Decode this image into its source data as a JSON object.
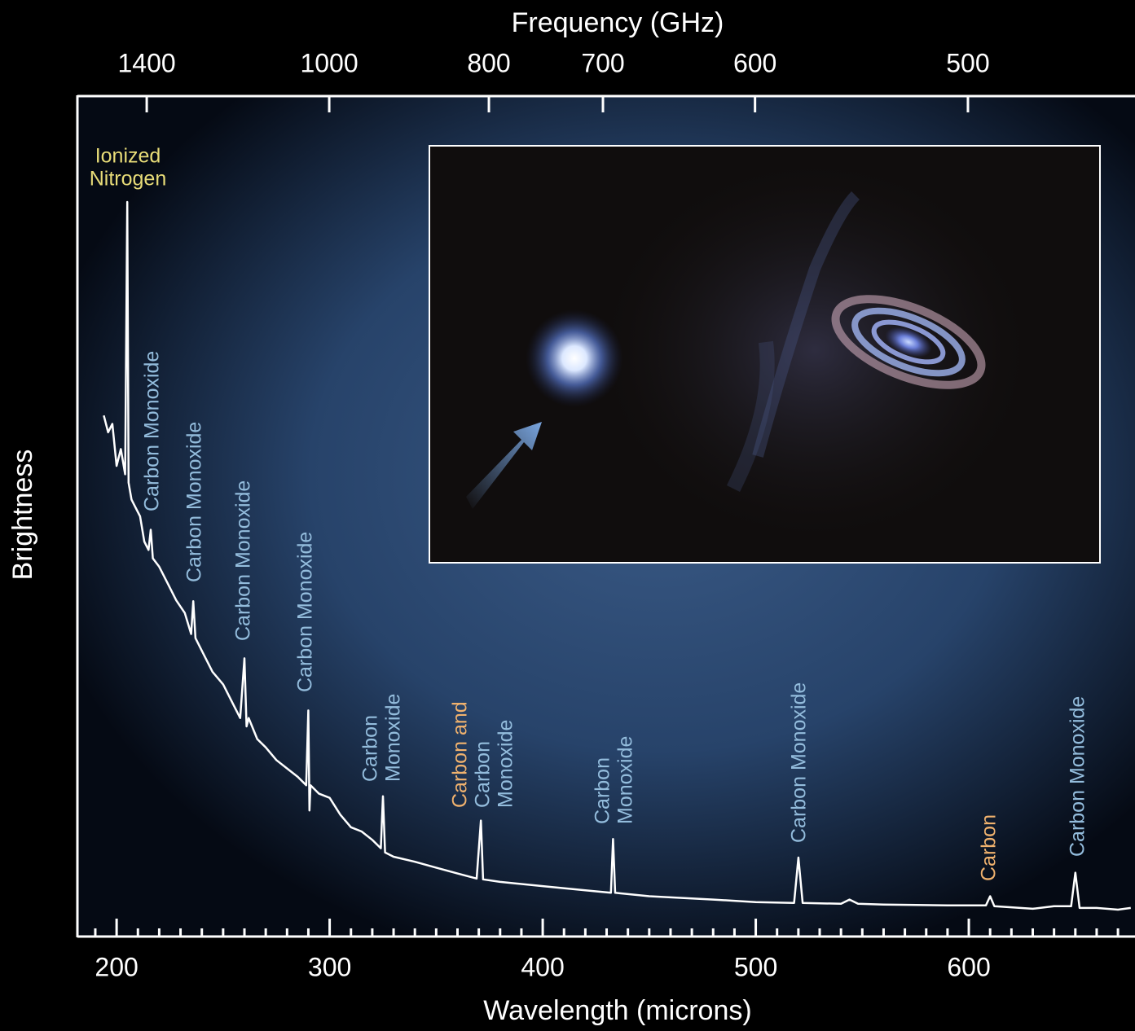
{
  "chart_data": {
    "type": "line",
    "x_label": "Wavelength (microns)",
    "x2_label": "Frequency (GHz)",
    "y_label": "Brightness",
    "xlim": [
      181.6,
      678
    ],
    "xticks": [
      200,
      300,
      400,
      500,
      600
    ],
    "xminorticks": [
      190,
      210,
      220,
      230,
      240,
      250,
      260,
      270,
      280,
      290,
      310,
      320,
      330,
      340,
      350,
      360,
      370,
      380,
      390,
      410,
      420,
      430,
      440,
      450,
      460,
      470,
      480,
      490,
      510,
      520,
      530,
      540,
      550,
      560,
      570,
      580,
      590,
      610,
      620,
      630,
      640,
      650,
      660,
      670
    ],
    "x2ticks": [
      1400,
      1000,
      800,
      700,
      600,
      500
    ],
    "ylim": [
      0,
      100
    ],
    "series": [
      {
        "color": "#ffffff",
        "x": [
          194,
          196,
          198,
          200,
          202,
          204,
          205,
          205.6,
          207,
          209,
          211,
          213,
          215,
          216,
          217,
          220,
          224,
          228,
          232,
          235,
          236,
          237,
          240,
          245,
          250,
          255,
          258,
          260,
          261,
          262,
          266,
          270,
          275,
          280,
          285,
          289,
          290,
          290.5,
          291,
          295,
          300,
          305,
          310,
          315,
          320,
          324,
          325,
          326,
          330,
          340,
          350,
          360,
          369,
          371,
          372,
          380,
          400,
          420,
          432,
          433,
          434,
          450,
          480,
          500,
          518,
          520,
          522,
          540,
          544,
          548,
          560,
          590,
          608,
          610,
          612,
          630,
          640,
          648,
          650,
          652,
          660,
          670,
          676
        ],
        "values": [
          62,
          60,
          61,
          56,
          58,
          55,
          87.4,
          54,
          52,
          51,
          50,
          47,
          46,
          48.4,
          45,
          44,
          42,
          40,
          38.5,
          36,
          39.9,
          35.5,
          34,
          31.5,
          30,
          27.5,
          26,
          33.1,
          25,
          26,
          23.5,
          22.5,
          21,
          20,
          19,
          18,
          26.9,
          15,
          18,
          17,
          16.5,
          14.5,
          13,
          12.5,
          11.5,
          10.5,
          16.7,
          10,
          9.5,
          8.9,
          8.2,
          7.5,
          6.9,
          13.8,
          6.8,
          6.5,
          6,
          5.5,
          5.2,
          11.6,
          5.2,
          4.8,
          4.4,
          4.1,
          4.0,
          9.4,
          4.0,
          3.9,
          4.4,
          3.9,
          3.8,
          3.7,
          3.7,
          4.8,
          3.6,
          3.3,
          3.6,
          3.6,
          7.6,
          3.4,
          3.4,
          3.2,
          3.4
        ]
      }
    ],
    "annotations": [
      {
        "lines": [
          {
            "text": "Ionized",
            "color": "#e8dc78"
          },
          {
            "text": "Nitrogen",
            "color": "#e8dc78"
          }
        ]
      },
      {
        "lines": [
          {
            "text": "Carbon Monoxide",
            "color": "#93bcdc"
          }
        ]
      },
      {
        "lines": [
          {
            "text": "Carbon Monoxide",
            "color": "#93bcdc"
          }
        ]
      },
      {
        "lines": [
          {
            "text": "Carbon Monoxide",
            "color": "#93bcdc"
          }
        ]
      },
      {
        "lines": [
          {
            "text": "Carbon Monoxide",
            "color": "#93bcdc"
          }
        ]
      },
      {
        "lines": [
          {
            "text": "Carbon",
            "color": "#93bcdc"
          },
          {
            "text": "Monoxide",
            "color": "#93bcdc"
          }
        ]
      },
      {
        "lines": [
          {
            "text": "Carbon and",
            "color": "#f0b26e"
          },
          {
            "text": "Carbon",
            "color": "#93bcdc"
          },
          {
            "text": "Monoxide",
            "color": "#93bcdc"
          }
        ]
      },
      {
        "lines": [
          {
            "text": "Carbon",
            "color": "#93bcdc"
          },
          {
            "text": "Monoxide",
            "color": "#93bcdc"
          }
        ]
      },
      {
        "lines": [
          {
            "text": "Carbon Monoxide",
            "color": "#93bcdc"
          }
        ]
      },
      {
        "lines": [
          {
            "text": "Carbon",
            "color": "#f0b26e"
          }
        ]
      },
      {
        "lines": [
          {
            "text": "Carbon Monoxide",
            "color": "#93bcdc"
          }
        ]
      }
    ]
  }
}
